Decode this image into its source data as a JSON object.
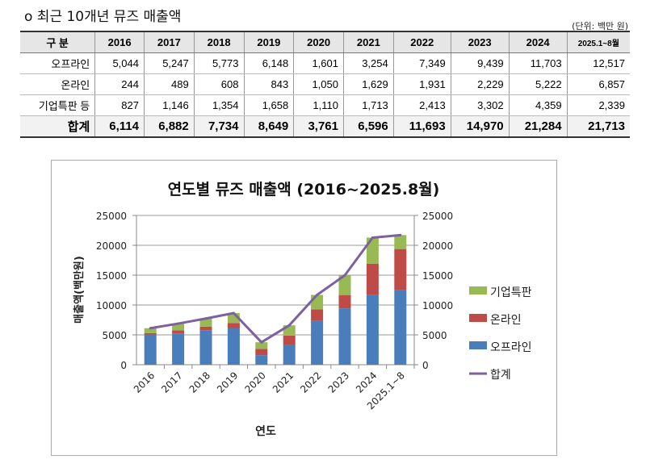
{
  "doc": {
    "title": "o 최근 10개년 뮤즈 매출액",
    "unit": "(단위: 백만 원)"
  },
  "table": {
    "headers": [
      "구 분",
      "2016",
      "2017",
      "2018",
      "2019",
      "2020",
      "2021",
      "2022",
      "2023",
      "2024",
      "2025.1~8월"
    ],
    "rows": [
      {
        "label": "오프라인",
        "values": [
          "5,044",
          "5,247",
          "5,773",
          "6,148",
          "1,601",
          "3,254",
          "7,349",
          "9,439",
          "11,703",
          "12,517"
        ]
      },
      {
        "label": "온라인",
        "values": [
          "244",
          "489",
          "608",
          "843",
          "1,050",
          "1,629",
          "1,931",
          "2,229",
          "5,222",
          "6,857"
        ]
      },
      {
        "label": "기업특판 등",
        "values": [
          "827",
          "1,146",
          "1,354",
          "1,658",
          "1,110",
          "1,713",
          "2,413",
          "3,302",
          "4,359",
          "2,339"
        ]
      }
    ],
    "total": {
      "label": "합계",
      "values": [
        "6,114",
        "6,882",
        "7,734",
        "8,649",
        "3,761",
        "6,596",
        "11,693",
        "14,970",
        "21,284",
        "21,713"
      ]
    }
  },
  "chart_data": {
    "type": "bar",
    "stacked": true,
    "title": "연도별 뮤즈 매출액 (2016~2025.8월)",
    "xlabel": "연도",
    "ylabel": "매출액(백만원)",
    "ylim": [
      0,
      25000
    ],
    "yticks": [
      "0",
      "5000",
      "10000",
      "15000",
      "20000",
      "25000"
    ],
    "secondary_ylim": [
      0,
      25000
    ],
    "grid": true,
    "legend_position": "right",
    "categories": [
      "2016",
      "2017",
      "2018",
      "2019",
      "2020",
      "2021",
      "2022",
      "2023",
      "2024",
      "2025.1~8"
    ],
    "series": [
      {
        "name": "오프라인",
        "type": "bar",
        "color": "#4a7ebb",
        "values": [
          5044,
          5247,
          5773,
          6148,
          1601,
          3254,
          7349,
          9439,
          11703,
          12517
        ]
      },
      {
        "name": "온라인",
        "type": "bar",
        "color": "#be4b48",
        "values": [
          244,
          489,
          608,
          843,
          1050,
          1629,
          1931,
          2229,
          5222,
          6857
        ]
      },
      {
        "name": "기업특판",
        "type": "bar",
        "color": "#98b954",
        "values": [
          827,
          1146,
          1354,
          1658,
          1110,
          1713,
          2413,
          3302,
          4359,
          2339
        ]
      },
      {
        "name": "합계",
        "type": "line",
        "color": "#7d60a0",
        "values": [
          6114,
          6882,
          7734,
          8649,
          3761,
          6596,
          11693,
          14970,
          21284,
          21713
        ]
      }
    ]
  }
}
